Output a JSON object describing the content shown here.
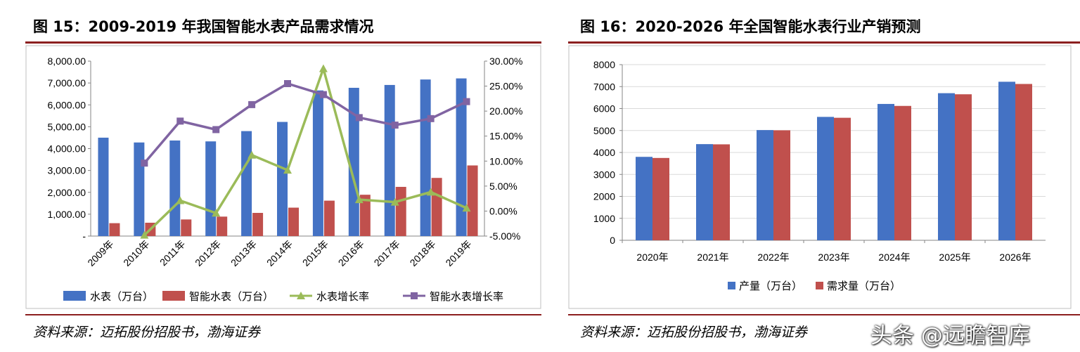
{
  "figures": [
    {
      "title": "图 15：2009-2019 年我国智能水表产品需求情况",
      "source": "资料来源：迈拓股份招股书，渤海证券"
    },
    {
      "title": "图 16：2020-2026 年全国智能水表行业产销预测",
      "source": "资料来源：迈拓股份招股书，渤海证券"
    }
  ],
  "watermark": "头条 @远瞻智库",
  "chart_data": [
    {
      "type": "bar",
      "title": "",
      "categories": [
        "2009年",
        "2010年",
        "2011年",
        "2012年",
        "2013年",
        "2014年",
        "2015年",
        "2016年",
        "2017年",
        "2018年",
        "2019年"
      ],
      "y_left_ticks": [
        "-",
        "1,000.00",
        "2,000.00",
        "3,000.00",
        "4,000.00",
        "5,000.00",
        "6,000.00",
        "7,000.00",
        "8,000.00"
      ],
      "y_right_ticks": [
        "-5.00%",
        "0.00%",
        "5.00%",
        "10.00%",
        "15.00%",
        "20.00%",
        "25.00%",
        "30.00%"
      ],
      "ylim_left": [
        0,
        8000
      ],
      "ylim_right": [
        -5,
        30
      ],
      "series": [
        {
          "name": "水表（万台）",
          "kind": "bar",
          "axis": "left",
          "color": "#4472c4",
          "values": [
            4500,
            4280,
            4370,
            4330,
            4800,
            5220,
            6660,
            6780,
            6910,
            7160,
            7210
          ]
        },
        {
          "name": "智能水表（万台）",
          "kind": "bar",
          "axis": "left",
          "color": "#c0504d",
          "values": [
            590,
            610,
            760,
            890,
            1060,
            1300,
            1620,
            1890,
            2250,
            2660,
            3230
          ]
        },
        {
          "name": "水表增长率",
          "kind": "line",
          "axis": "right",
          "color": "#9bbb59",
          "marker": "triangle",
          "values": [
            null,
            -4.8,
            2.1,
            -0.4,
            11.2,
            8.2,
            28.5,
            2.3,
            1.8,
            3.8,
            0.6
          ]
        },
        {
          "name": "智能水表增长率",
          "kind": "line",
          "axis": "right",
          "color": "#8064a2",
          "marker": "square",
          "values": [
            null,
            9.6,
            18.0,
            16.3,
            21.3,
            25.5,
            23.3,
            18.7,
            17.2,
            18.5,
            21.9
          ]
        }
      ],
      "legend": "bottom",
      "grid": false
    },
    {
      "type": "bar",
      "title": "",
      "categories": [
        "2020年",
        "2021年",
        "2022年",
        "2023年",
        "2024年",
        "2025年",
        "2026年"
      ],
      "y_ticks": [
        "0",
        "1000",
        "2000",
        "3000",
        "4000",
        "5000",
        "6000",
        "7000",
        "8000"
      ],
      "ylim": [
        0,
        8000
      ],
      "series": [
        {
          "name": "产量（万台）",
          "color": "#4472c4",
          "values": [
            3800,
            4380,
            5020,
            5620,
            6210,
            6700,
            7220
          ]
        },
        {
          "name": "需求量（万台）",
          "color": "#c0504d",
          "values": [
            3750,
            4370,
            5010,
            5580,
            6120,
            6650,
            7120
          ]
        }
      ],
      "legend": "bottom",
      "grid": true
    }
  ]
}
